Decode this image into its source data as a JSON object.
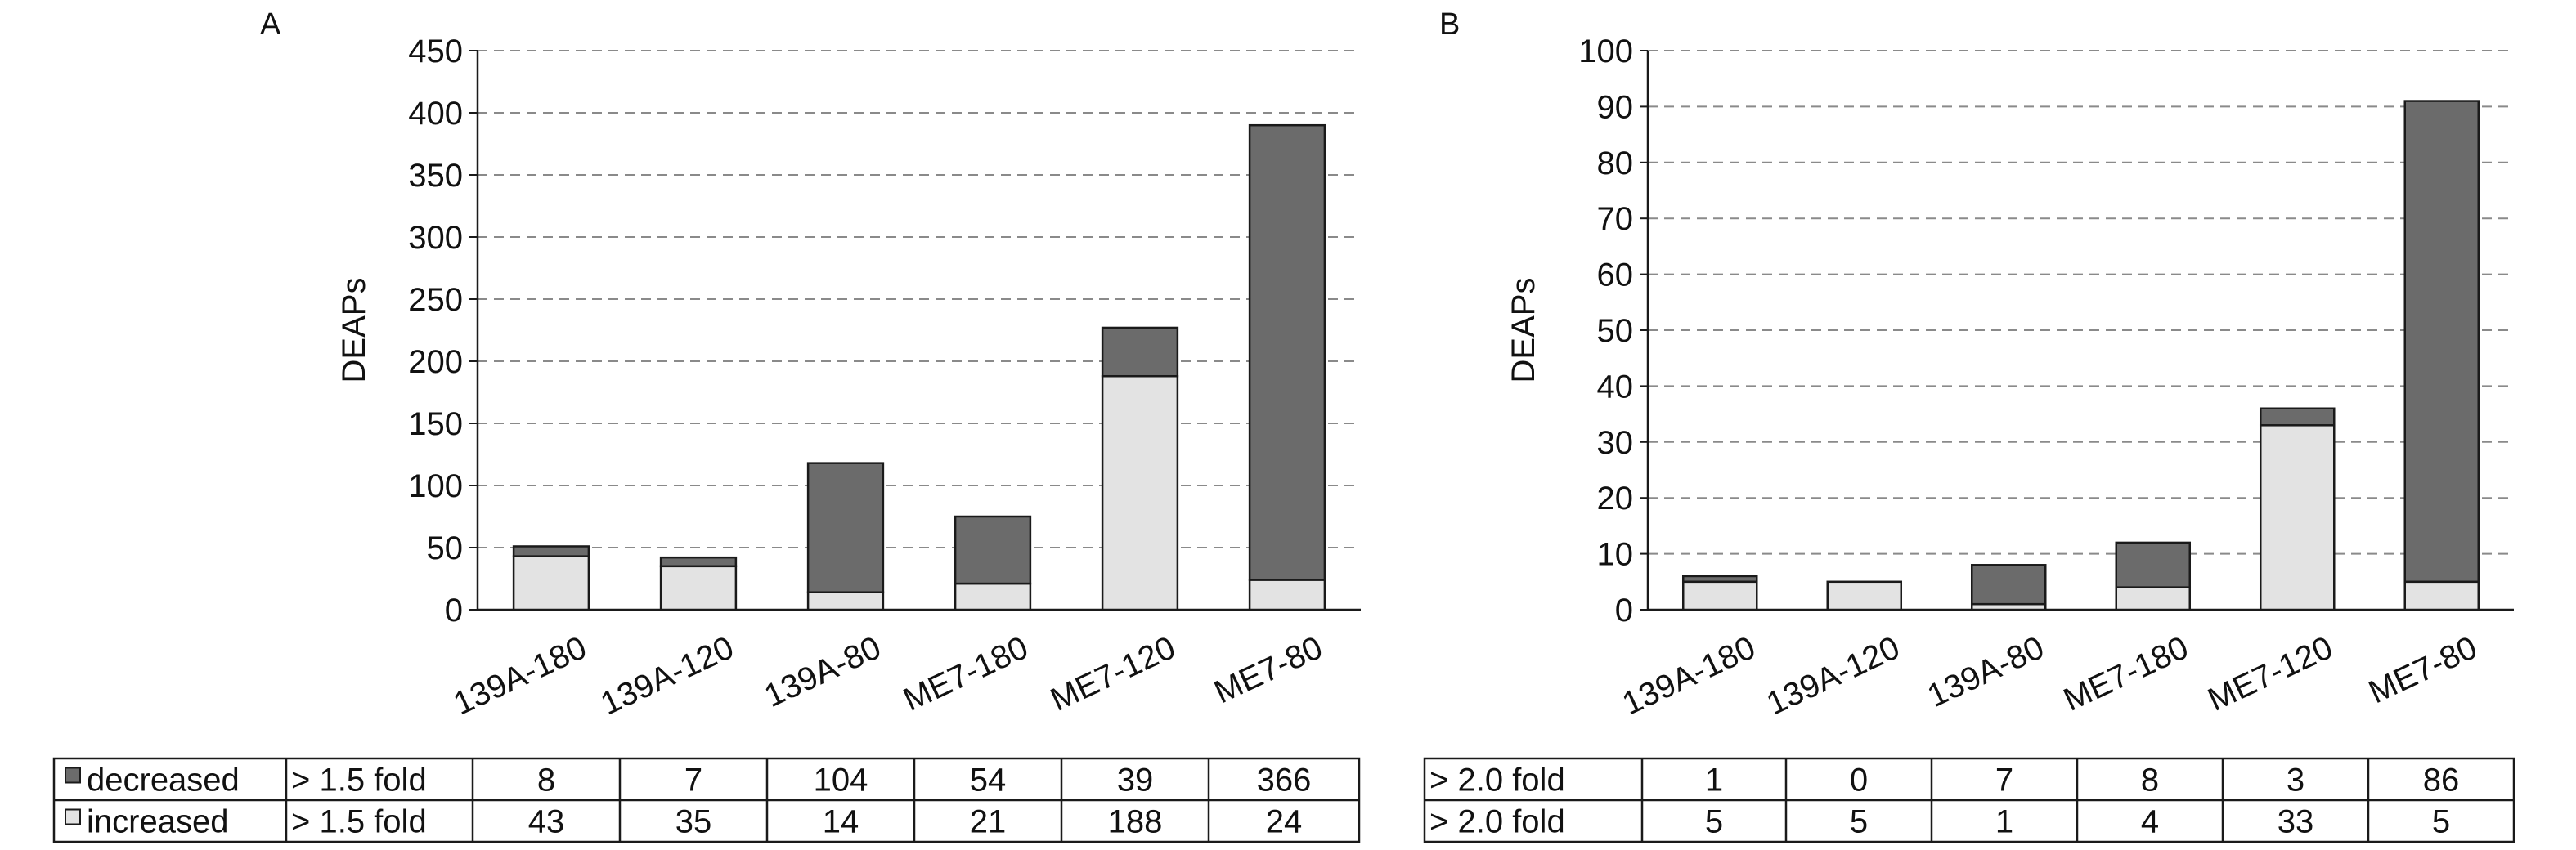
{
  "colors": {
    "increased": "#e3e3e3",
    "decreased": "#6b6b6b",
    "stroke": "#1a1a1a",
    "grid": "#8a8a8a"
  },
  "chart_data": [
    {
      "panel_label": "A",
      "type": "bar",
      "stacked": true,
      "ylabel": "DEAPs",
      "ylim": [
        0,
        450
      ],
      "yticks": [
        0,
        50,
        100,
        150,
        200,
        250,
        300,
        350,
        400,
        450
      ],
      "grid": "horizontal dashed",
      "categories": [
        "139A-180",
        "139A-120",
        "139A-80",
        "ME7-180",
        "ME7-120",
        "ME7-80"
      ],
      "series": [
        {
          "name": "increased",
          "values": [
            43,
            35,
            14,
            21,
            188,
            24
          ]
        },
        {
          "name": "decreased",
          "values": [
            8,
            7,
            104,
            54,
            39,
            366
          ]
        }
      ],
      "table": {
        "rows": [
          {
            "series": "decreased",
            "legend_label": "decreased",
            "threshold": "> 1.5 fold",
            "values": [
              "8",
              "7",
              "104",
              "54",
              "39",
              "366"
            ]
          },
          {
            "series": "increased",
            "legend_label": "increased",
            "threshold": "> 1.5 fold",
            "values": [
              "43",
              "35",
              "14",
              "21",
              "188",
              "24"
            ]
          }
        ]
      }
    },
    {
      "panel_label": "B",
      "type": "bar",
      "stacked": true,
      "ylabel": "DEAPs",
      "ylim": [
        0,
        100
      ],
      "yticks": [
        0,
        10,
        20,
        30,
        40,
        50,
        60,
        70,
        80,
        90,
        100
      ],
      "grid": "horizontal dashed",
      "categories": [
        "139A-180",
        "139A-120",
        "139A-80",
        "ME7-180",
        "ME7-120",
        "ME7-80"
      ],
      "series": [
        {
          "name": "increased",
          "values": [
            5,
            5,
            1,
            4,
            33,
            5
          ]
        },
        {
          "name": "decreased",
          "values": [
            1,
            0,
            7,
            8,
            3,
            86
          ]
        }
      ],
      "table": {
        "rows": [
          {
            "series": "decreased",
            "threshold": "> 2.0 fold",
            "values": [
              "1",
              "0",
              "7",
              "8",
              "3",
              "86"
            ]
          },
          {
            "series": "increased",
            "threshold": "> 2.0 fold",
            "values": [
              "5",
              "5",
              "1",
              "4",
              "33",
              "5"
            ]
          }
        ]
      }
    }
  ]
}
